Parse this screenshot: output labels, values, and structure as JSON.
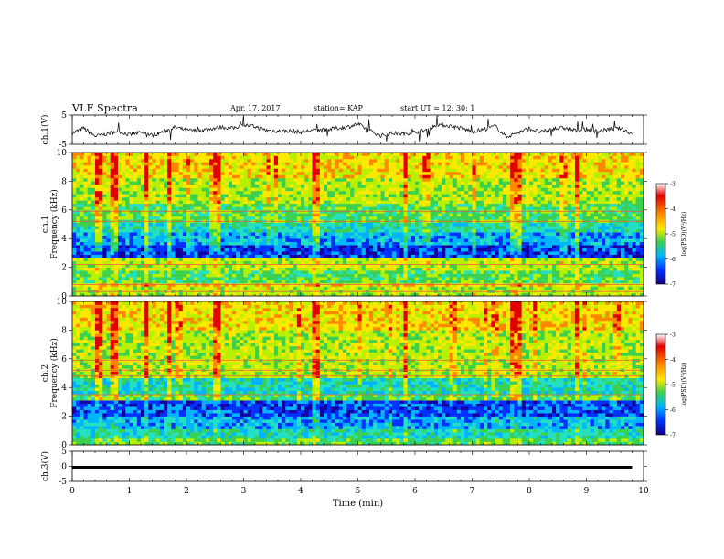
{
  "header": {
    "title": "VLF Spectra",
    "date": "Apr. 17, 2017",
    "station": "station= KAP",
    "start_time": "start UT = 12: 30: 1"
  },
  "colors": {
    "trace": "#000000",
    "axes": "#000000",
    "background": "#ffffff",
    "colormap": [
      "#1400a0",
      "#0030ff",
      "#00b4ff",
      "#22e0c0",
      "#3cd050",
      "#b8f000",
      "#ffe800",
      "#ff8800",
      "#e00000"
    ]
  },
  "chart_data": [
    {
      "id": "ch1-waveform",
      "type": "line",
      "ylabel": "ch.1(V)",
      "ylim": [
        -5,
        5
      ],
      "yticks": [
        "5",
        "-5"
      ],
      "xlim": [
        0,
        10
      ],
      "series": [
        {
          "x": [
            0,
            0.2,
            0.4,
            0.6,
            0.8,
            1.0,
            1.2,
            1.4,
            1.6,
            1.8,
            2.0,
            2.2,
            2.4,
            2.6,
            2.8,
            3.0,
            3.2,
            3.4,
            3.6,
            3.8,
            4.0,
            4.2,
            4.4,
            4.6,
            4.8,
            5.0,
            5.2,
            5.4,
            5.6,
            5.8,
            6.0,
            6.2,
            6.4,
            6.6,
            6.8,
            7.0,
            7.2,
            7.4,
            7.6,
            7.8,
            8.0,
            8.2,
            8.4,
            8.6,
            8.8,
            9.0,
            9.2,
            9.4,
            9.6,
            9.8
          ],
          "values": [
            -1.2,
            0.5,
            -2.2,
            -1.5,
            -0.4,
            -1.8,
            -1.0,
            -1.9,
            -0.6,
            0.8,
            -0.2,
            -0.4,
            0.2,
            0.9,
            0.5,
            1.6,
            1.0,
            -0.2,
            -0.5,
            -0.4,
            -0.8,
            -0.2,
            -0.1,
            0.4,
            0.8,
            1.9,
            -0.3,
            -2.0,
            -1.2,
            -1.4,
            -0.8,
            -0.1,
            1.8,
            1.3,
            0.5,
            -0.6,
            0.1,
            1.2,
            -2.4,
            -1.0,
            0.4,
            -0.9,
            0.2,
            0.6,
            -0.3,
            0.1,
            -0.6,
            0.2,
            0.4,
            -1.3
          ]
        }
      ]
    },
    {
      "id": "ch1-spectrogram",
      "type": "heatmap",
      "ylabel": "ch.1 Frequency (kHz)",
      "ylim": [
        0,
        10
      ],
      "yticks": [
        "0",
        "2",
        "4",
        "6",
        "8",
        "10"
      ],
      "xlim": [
        0,
        10
      ],
      "colorbar": {
        "label": "log(PSD)(V²/Hz)",
        "range": [
          -7,
          -3
        ],
        "ticks": [
          "-3",
          "-4",
          "-5",
          "-6",
          "-7"
        ]
      },
      "bands": [
        {
          "f": [
            0,
            0.6
          ],
          "level": 5
        },
        {
          "f": [
            0.6,
            1.0
          ],
          "level": 6
        },
        {
          "f": [
            1.0,
            1.8
          ],
          "level": 4
        },
        {
          "f": [
            1.8,
            2.6
          ],
          "level": 5
        },
        {
          "f": [
            2.6,
            3.5
          ],
          "level": 1
        },
        {
          "f": [
            3.5,
            4.4
          ],
          "level": 2
        },
        {
          "f": [
            4.4,
            5.2
          ],
          "level": 3
        },
        {
          "f": [
            5.2,
            6.5
          ],
          "level": 4
        },
        {
          "f": [
            6.5,
            8.2
          ],
          "level": 5
        },
        {
          "f": [
            8.2,
            10.0
          ],
          "level": 6
        }
      ],
      "tones_khz": [
        0.3,
        0.8,
        2.2,
        5.2,
        5.9
      ],
      "bursts_min": [
        0.45,
        0.75,
        1.3,
        1.7,
        2.55,
        4.25,
        5.82,
        7.75,
        7.85,
        8.85
      ]
    },
    {
      "id": "ch2-spectrogram",
      "type": "heatmap",
      "ylabel": "ch.2 Frequency (kHz)",
      "ylim": [
        0,
        10
      ],
      "yticks": [
        "0",
        "2",
        "4",
        "6",
        "8",
        "10"
      ],
      "xlim": [
        0,
        10
      ],
      "colorbar": {
        "label": "log(PSD)(V²/Hz)",
        "range": [
          -7,
          -3
        ],
        "ticks": [
          "-3",
          "-4",
          "-5",
          "-6",
          "-7"
        ]
      },
      "bands": [
        {
          "f": [
            0,
            0.4
          ],
          "level": 4
        },
        {
          "f": [
            0.4,
            1.2
          ],
          "level": 3
        },
        {
          "f": [
            1.2,
            2.0
          ],
          "level": 2
        },
        {
          "f": [
            2.0,
            3.1
          ],
          "level": 1
        },
        {
          "f": [
            3.1,
            3.6
          ],
          "level": 4
        },
        {
          "f": [
            3.6,
            4.6
          ],
          "level": 3
        },
        {
          "f": [
            4.6,
            6.0
          ],
          "level": 5
        },
        {
          "f": [
            6.0,
            8.0
          ],
          "level": 5
        },
        {
          "f": [
            8.0,
            10.0
          ],
          "level": 6
        }
      ],
      "tones_khz": [
        3.5,
        4.8,
        5.2,
        5.9
      ],
      "bursts_min": [
        0.45,
        0.75,
        1.3,
        1.7,
        2.55,
        4.25,
        5.82,
        7.75,
        7.85,
        8.85
      ]
    },
    {
      "id": "ch3-waveform",
      "type": "line",
      "ylabel": "ch.3(V)",
      "ylim": [
        -5,
        5
      ],
      "yticks": [
        "5",
        "0",
        "-5"
      ],
      "xlim": [
        0,
        10
      ],
      "xlabel": "Time (min)",
      "xticks": [
        "0",
        "1",
        "2",
        "3",
        "4",
        "5",
        "6",
        "7",
        "8",
        "9",
        "10"
      ],
      "series": [
        {
          "x": [
            0,
            9.8
          ],
          "values": [
            0,
            0
          ]
        }
      ]
    }
  ]
}
